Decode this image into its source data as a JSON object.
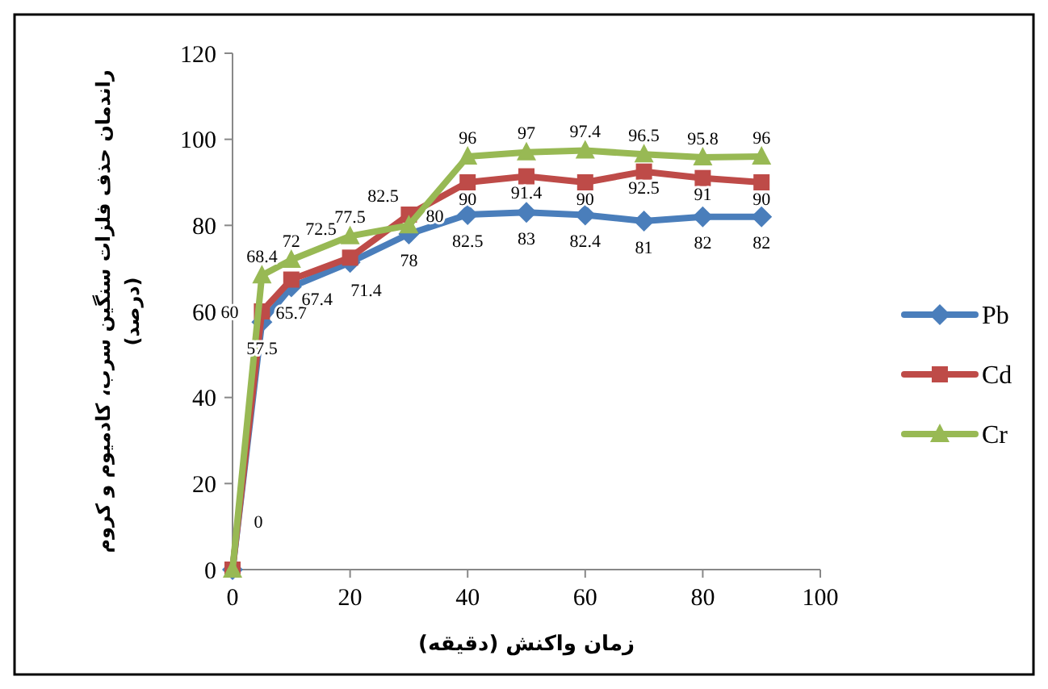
{
  "chart_data": {
    "type": "line",
    "xlabel": "زمان واکنش (دقیقه)",
    "ylabel": "راندمان حذف فلزات سنگین سرب، کادمیوم و کروم\n(درصد)",
    "x": [
      0,
      5,
      10,
      20,
      30,
      40,
      50,
      60,
      70,
      80,
      90
    ],
    "xlim": [
      0,
      100
    ],
    "xticks": [
      0,
      20,
      40,
      60,
      80,
      100
    ],
    "ylim": [
      0,
      120
    ],
    "yticks": [
      0,
      20,
      40,
      60,
      80,
      100,
      120
    ],
    "grid": false,
    "legend": "right",
    "series": [
      {
        "name": "Pb",
        "color": "#4a7ebb",
        "marker": "diamond",
        "values": [
          0,
          57.5,
          65.7,
          71.4,
          78,
          82.5,
          83,
          82.4,
          81,
          82,
          82
        ],
        "value_labels": [
          "0",
          "57.5",
          "65.7",
          "71.4",
          "78",
          "82.5",
          "83",
          "82.4",
          "81",
          "82",
          "82"
        ]
      },
      {
        "name": "Cd",
        "color": "#be4b48",
        "marker": "square",
        "values": [
          0,
          60,
          67.4,
          72.5,
          82.5,
          90,
          91.4,
          90,
          92.5,
          91,
          90
        ],
        "value_labels": [
          null,
          "60",
          "67.4",
          "72.5",
          "82.5",
          "90",
          "91.4",
          "90",
          "92.5",
          "91",
          "90"
        ]
      },
      {
        "name": "Cr",
        "color": "#98b954",
        "marker": "triangle",
        "values": [
          0,
          68.4,
          72,
          77.5,
          80,
          96,
          97,
          97.4,
          96.5,
          95.8,
          96
        ],
        "value_labels": [
          null,
          "68.4",
          "72",
          "77.5",
          "80",
          "96",
          "97",
          "97.4",
          "96.5",
          "95.8",
          "96"
        ]
      }
    ]
  }
}
